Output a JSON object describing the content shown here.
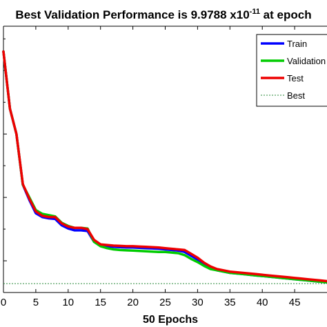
{
  "chart_data": {
    "type": "line",
    "title": "Best Validation Performance is 9.9788 x10",
    "title_exponent": "-11",
    "title_suffix": " at epoch",
    "xlabel": "50 Epochs",
    "ylabel": "",
    "xlim": [
      0,
      50
    ],
    "ylim": [
      -2.5,
      1.7
    ],
    "x_ticks": [
      0,
      5,
      10,
      15,
      20,
      25,
      30,
      35,
      40,
      45
    ],
    "legend_position": "top-right",
    "grid": false,
    "x": [
      0,
      1,
      2,
      3,
      4,
      5,
      6,
      7,
      8,
      9,
      10,
      11,
      12,
      13,
      14,
      15,
      16,
      17,
      18,
      19,
      20,
      21,
      22,
      23,
      24,
      25,
      26,
      27,
      28,
      29,
      30,
      31,
      32,
      33,
      34,
      35,
      36,
      37,
      38,
      39,
      40,
      41,
      42,
      43,
      44,
      45,
      46,
      47,
      48,
      49,
      50
    ],
    "series": [
      {
        "name": "Train",
        "color": "#0000ff",
        "values": [
          1.3,
          0.4,
          0.0,
          -0.8,
          -1.04,
          -1.25,
          -1.31,
          -1.33,
          -1.34,
          -1.44,
          -1.49,
          -1.52,
          -1.52,
          -1.53,
          -1.7,
          -1.76,
          -1.77,
          -1.78,
          -1.785,
          -1.79,
          -1.79,
          -1.795,
          -1.8,
          -1.805,
          -1.81,
          -1.82,
          -1.83,
          -1.84,
          -1.86,
          -1.92,
          -1.98,
          -2.05,
          -2.11,
          -2.15,
          -2.17,
          -2.19,
          -2.2,
          -2.21,
          -2.22,
          -2.23,
          -2.24,
          -2.25,
          -2.26,
          -2.27,
          -2.28,
          -2.29,
          -2.3,
          -2.31,
          -2.32,
          -2.33,
          -2.34
        ]
      },
      {
        "name": "Validation",
        "color": "#00cc00",
        "values": [
          1.3,
          0.4,
          0.0,
          -0.8,
          -1.0,
          -1.2,
          -1.26,
          -1.28,
          -1.3,
          -1.4,
          -1.45,
          -1.48,
          -1.48,
          -1.49,
          -1.7,
          -1.77,
          -1.8,
          -1.82,
          -1.83,
          -1.835,
          -1.84,
          -1.845,
          -1.85,
          -1.855,
          -1.86,
          -1.86,
          -1.87,
          -1.88,
          -1.91,
          -1.97,
          -2.02,
          -2.08,
          -2.13,
          -2.15,
          -2.17,
          -2.19,
          -2.2,
          -2.21,
          -2.22,
          -2.23,
          -2.24,
          -2.25,
          -2.26,
          -2.27,
          -2.28,
          -2.29,
          -2.3,
          -2.31,
          -2.32,
          -2.33,
          -2.34
        ]
      },
      {
        "name": "Test",
        "color": "#ee0000",
        "values": [
          1.3,
          0.4,
          0.0,
          -0.79,
          -1.02,
          -1.22,
          -1.29,
          -1.31,
          -1.31,
          -1.41,
          -1.46,
          -1.48,
          -1.48,
          -1.5,
          -1.67,
          -1.74,
          -1.75,
          -1.76,
          -1.765,
          -1.77,
          -1.77,
          -1.775,
          -1.78,
          -1.785,
          -1.79,
          -1.8,
          -1.81,
          -1.82,
          -1.83,
          -1.89,
          -1.95,
          -2.03,
          -2.09,
          -2.13,
          -2.15,
          -2.17,
          -2.18,
          -2.19,
          -2.2,
          -2.21,
          -2.22,
          -2.23,
          -2.24,
          -2.25,
          -2.26,
          -2.27,
          -2.28,
          -2.29,
          -2.3,
          -2.31,
          -2.32
        ]
      }
    ],
    "best": {
      "name": "Best",
      "value": -2.36,
      "color": "#2a8a3a",
      "style": "dotted"
    }
  }
}
